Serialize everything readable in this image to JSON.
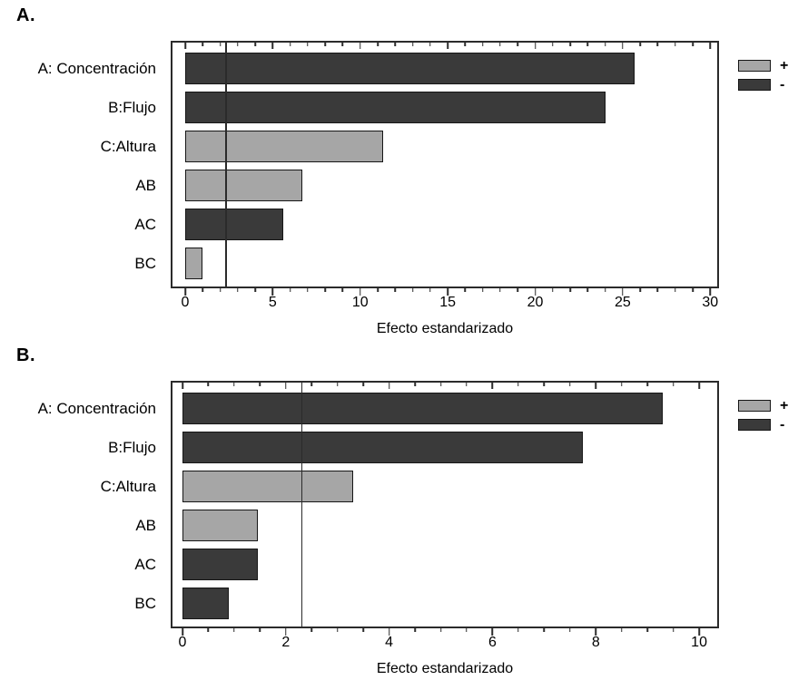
{
  "legend": {
    "positive_label": "+",
    "negative_label": "-"
  },
  "colors": {
    "positive_bar": "#a6a6a6",
    "negative_bar": "#3a3a3a",
    "bar_border": "#161616",
    "axis": "#2b2b2b",
    "background": "#ffffff"
  },
  "chart_data": [
    {
      "type": "bar",
      "orientation": "horizontal",
      "panel_label": "A.",
      "xlabel": "Efecto estandarizado",
      "categories": [
        "A: Concentración",
        "B:Flujo",
        "C:Altura",
        "AB",
        "AC",
        "BC"
      ],
      "values": [
        25.7,
        24.0,
        11.3,
        6.7,
        5.6,
        1.0
      ],
      "signs": [
        "-",
        "-",
        "+",
        "+",
        "-",
        "+"
      ],
      "reference_line": 2.3,
      "xlim": [
        0,
        30.4
      ],
      "xticks": [
        0,
        5,
        10,
        15,
        20,
        25,
        30
      ],
      "minor_tick_step": 1,
      "grid": false,
      "legend_position": "right"
    },
    {
      "type": "bar",
      "orientation": "horizontal",
      "panel_label": "B.",
      "xlabel": "Efecto estandarizado",
      "categories": [
        "A: Concentración",
        "B:Flujo",
        "C:Altura",
        "AB",
        "AC",
        "BC"
      ],
      "values": [
        9.3,
        7.75,
        3.3,
        1.45,
        1.45,
        0.9
      ],
      "signs": [
        "-",
        "-",
        "+",
        "+",
        "-",
        "-"
      ],
      "reference_line": 2.3,
      "xlim": [
        0,
        10.35
      ],
      "xticks": [
        0,
        2,
        4,
        6,
        8,
        10
      ],
      "minor_tick_step": 0.5,
      "grid": false,
      "legend_position": "right"
    }
  ]
}
